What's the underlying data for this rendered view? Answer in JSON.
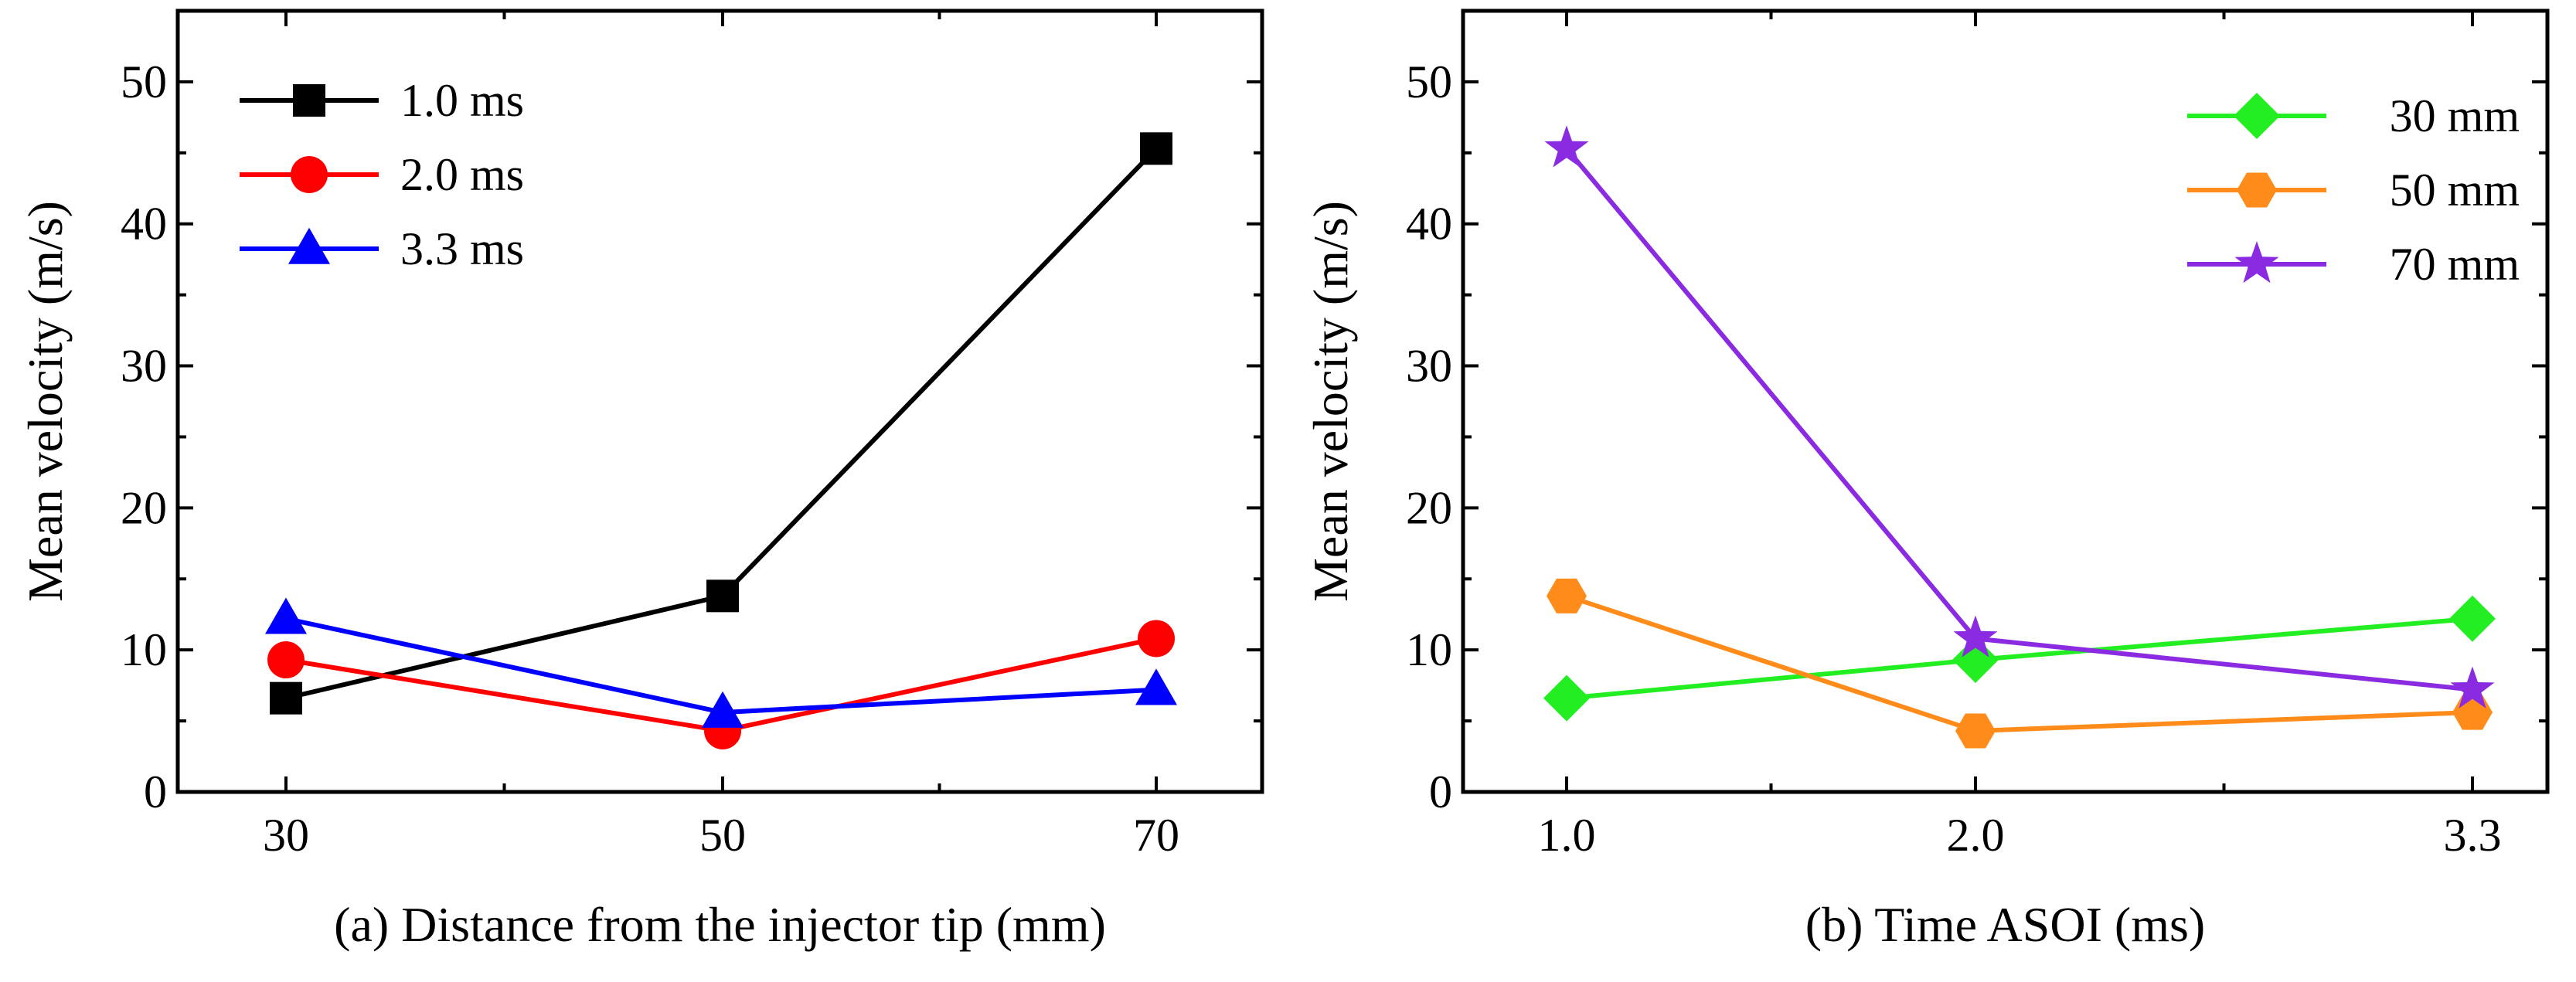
{
  "chart_data": [
    {
      "type": "line",
      "caption": "(a) Distance from the injector tip (mm)",
      "xlabel": "(a) Distance from the injector tip (mm)",
      "ylabel": "Mean velocity (m/s)",
      "x": [
        "30",
        "50",
        "70"
      ],
      "xlim": [
        30,
        70
      ],
      "ylim": [
        0,
        55
      ],
      "yticks": [
        "0",
        "10",
        "20",
        "30",
        "40",
        "50"
      ],
      "grid": false,
      "legend_position": "top-left",
      "series": [
        {
          "name": "1.0 ms",
          "values": [
            6.6,
            13.8,
            45.3
          ],
          "color": "#000000",
          "marker": "square"
        },
        {
          "name": "2.0 ms",
          "values": [
            9.3,
            4.3,
            10.8
          ],
          "color": "#ff0000",
          "marker": "circle"
        },
        {
          "name": "3.3 ms",
          "values": [
            12.2,
            5.6,
            7.2
          ],
          "color": "#0000ff",
          "marker": "triangle"
        }
      ]
    },
    {
      "type": "line",
      "caption": "(b) Time ASOI (ms)",
      "xlabel": "(b) Time ASOI (ms)",
      "ylabel": "Mean velocity (m/s)",
      "x": [
        "1.0",
        "2.0",
        "3.3"
      ],
      "ylim": [
        0,
        55
      ],
      "yticks": [
        "0",
        "10",
        "20",
        "30",
        "40",
        "50"
      ],
      "grid": false,
      "legend_position": "top-right",
      "series": [
        {
          "name": "30 mm",
          "values": [
            6.6,
            9.3,
            12.2
          ],
          "color": "#22ee22",
          "marker": "diamond"
        },
        {
          "name": "50 mm",
          "values": [
            13.8,
            4.3,
            5.6
          ],
          "color": "#ff8c1a",
          "marker": "hexagon"
        },
        {
          "name": "70 mm",
          "values": [
            45.3,
            10.8,
            7.2
          ],
          "color": "#8a2be2",
          "marker": "star"
        }
      ]
    }
  ]
}
